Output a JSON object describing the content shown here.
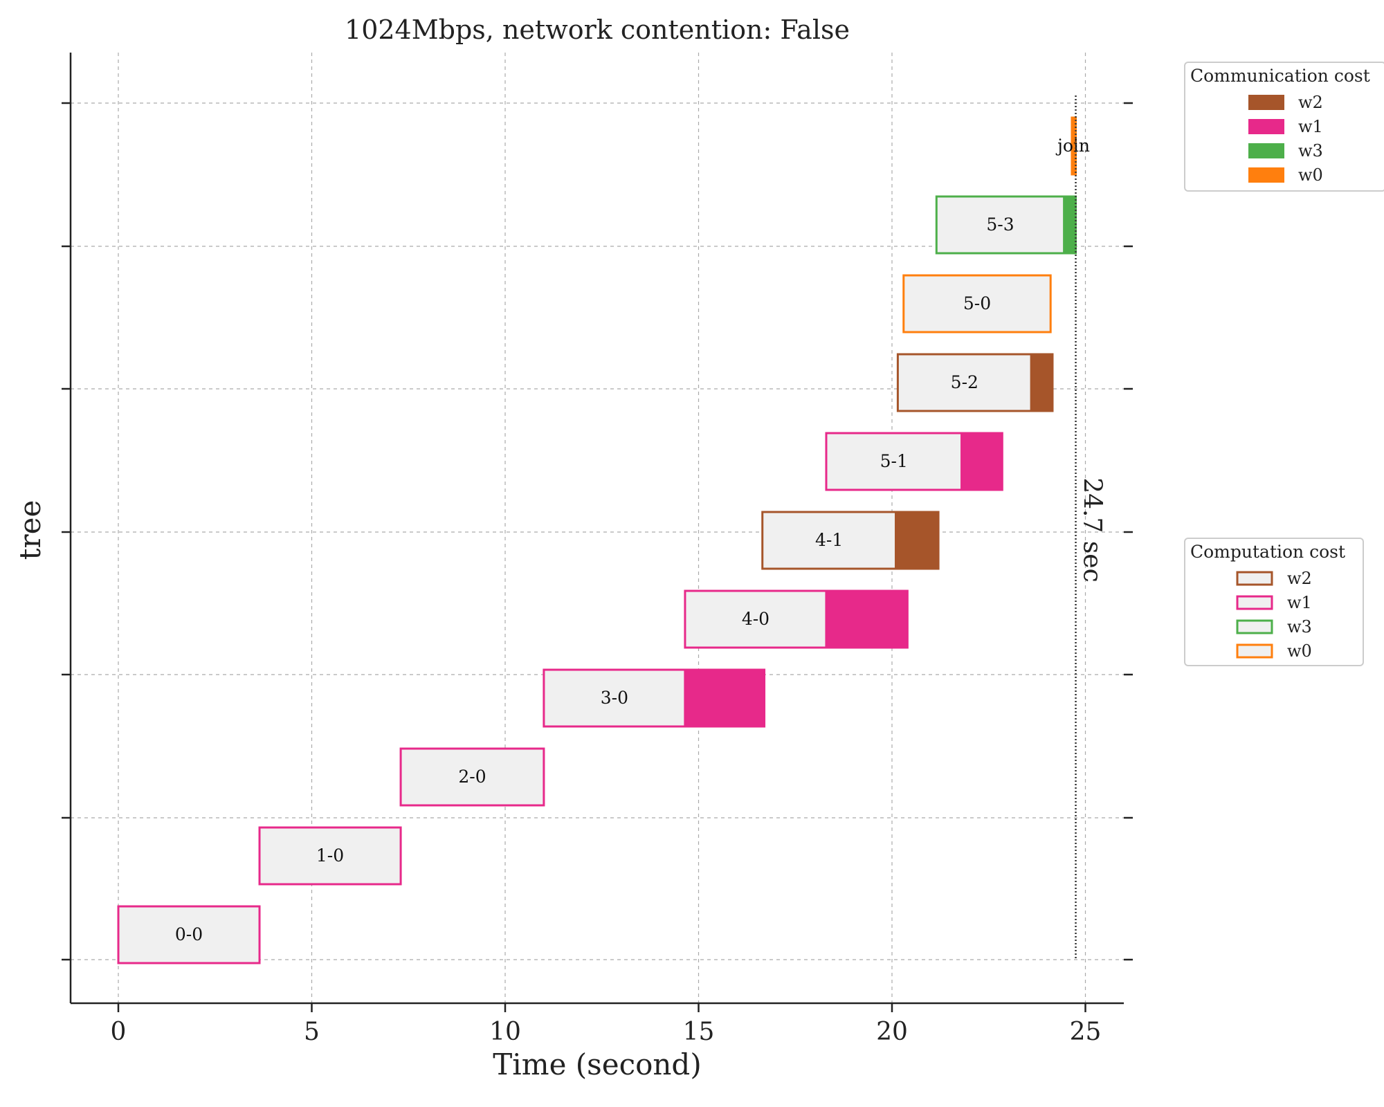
{
  "chart_data": {
    "type": "gantt",
    "title": "1024Mbps, network contention: False",
    "xlabel": "Time (second)",
    "ylabel": "tree",
    "xlim": [
      -1.2,
      25.9
    ],
    "xticks": [
      0,
      5,
      10,
      15,
      20,
      25
    ],
    "grid": true,
    "colors": {
      "w0": "#ff7f0e",
      "w1": "#e7298a",
      "w2": "#a6552a",
      "w3": "#4daf4a",
      "computation_fill": "#f0f0f0"
    },
    "tasks": [
      {
        "label": "0-0",
        "row": 0,
        "worker": "w1",
        "start": 0.0,
        "compute_end": 3.65,
        "comm_end": 3.65
      },
      {
        "label": "1-0",
        "row": 1,
        "worker": "w1",
        "start": 3.65,
        "compute_end": 7.3,
        "comm_end": 7.3
      },
      {
        "label": "2-0",
        "row": 2,
        "worker": "w1",
        "start": 7.3,
        "compute_end": 11.0,
        "comm_end": 11.0
      },
      {
        "label": "3-0",
        "row": 3,
        "worker": "w1",
        "start": 11.0,
        "compute_end": 14.65,
        "comm_end": 16.7
      },
      {
        "label": "4-0",
        "row": 4,
        "worker": "w1",
        "start": 14.65,
        "compute_end": 18.3,
        "comm_end": 20.4
      },
      {
        "label": "4-1",
        "row": 5,
        "worker": "w2",
        "start": 16.65,
        "compute_end": 20.1,
        "comm_end": 21.2
      },
      {
        "label": "5-1",
        "row": 6,
        "worker": "w1",
        "start": 18.3,
        "compute_end": 21.8,
        "comm_end": 22.85
      },
      {
        "label": "5-2",
        "row": 7,
        "worker": "w2",
        "start": 20.15,
        "compute_end": 23.6,
        "comm_end": 24.15
      },
      {
        "label": "5-0",
        "row": 8,
        "worker": "w0",
        "start": 20.3,
        "compute_end": 24.1,
        "comm_end": 24.1
      },
      {
        "label": "5-3",
        "row": 9,
        "worker": "w3",
        "start": 21.15,
        "compute_end": 24.45,
        "comm_end": 24.75
      },
      {
        "label": "join",
        "row": 10,
        "worker": "w0",
        "start": 24.65,
        "compute_end": 24.65,
        "comm_end": 24.75
      }
    ],
    "makespan": 24.75,
    "makespan_label": "24.7 sec",
    "legends": [
      {
        "title": "Communication cost",
        "style": "filled",
        "position": "top-right",
        "entries": [
          "w2",
          "w1",
          "w3",
          "w0"
        ]
      },
      {
        "title": "Computation cost",
        "style": "outline",
        "position": "right",
        "entries": [
          "w2",
          "w1",
          "w3",
          "w0"
        ]
      }
    ]
  }
}
